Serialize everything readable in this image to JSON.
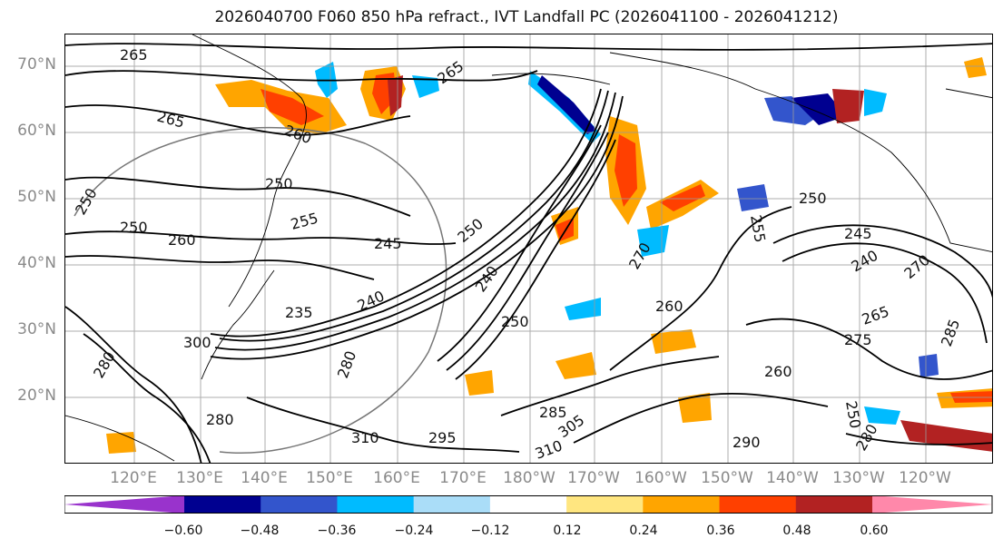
{
  "title": "2026040700 F060 850 hPa refract., IVT Landfall PC (2026041100 - 2026041212)",
  "lat_labels": [
    "70°N",
    "60°N",
    "50°N",
    "40°N",
    "30°N",
    "20°N"
  ],
  "lon_labels": [
    "120°E",
    "130°E",
    "140°E",
    "150°E",
    "160°E",
    "170°E",
    "180°W",
    "170°W",
    "160°W",
    "150°W",
    "140°W",
    "130°W",
    "120°W"
  ],
  "contour_labels": [
    "265",
    "265",
    "260",
    "265",
    "250",
    "260",
    "250",
    "255",
    "245",
    "250",
    "240",
    "235",
    "240",
    "250",
    "260",
    "250",
    "255",
    "245",
    "270",
    "265",
    "275",
    "260",
    "240",
    "295",
    "310",
    "285",
    "305",
    "310",
    "300",
    "280",
    "280",
    "250",
    "290",
    "280",
    "285",
    "250",
    "270",
    "280"
  ],
  "colorbar": {
    "ticks": [
      "−0.60",
      "−0.48",
      "−0.36",
      "−0.24",
      "−0.12",
      "0.12",
      "0.24",
      "0.36",
      "0.48",
      "0.60"
    ],
    "tick_values": [
      -0.6,
      -0.48,
      -0.36,
      -0.24,
      -0.12,
      0.12,
      0.24,
      0.36,
      0.48,
      0.6
    ],
    "bins": [
      -0.72,
      -0.6,
      -0.48,
      -0.36,
      -0.24,
      -0.12,
      0.12,
      0.24,
      0.36,
      0.48,
      0.6,
      0.72
    ],
    "colors": [
      "#9933cc",
      "#000090",
      "#3355cc",
      "#00bbff",
      "#aaddf8",
      "#ffffff",
      "#ffe680",
      "#ffa500",
      "#ff4000",
      "#b22222",
      "#ff88aa"
    ]
  }
}
